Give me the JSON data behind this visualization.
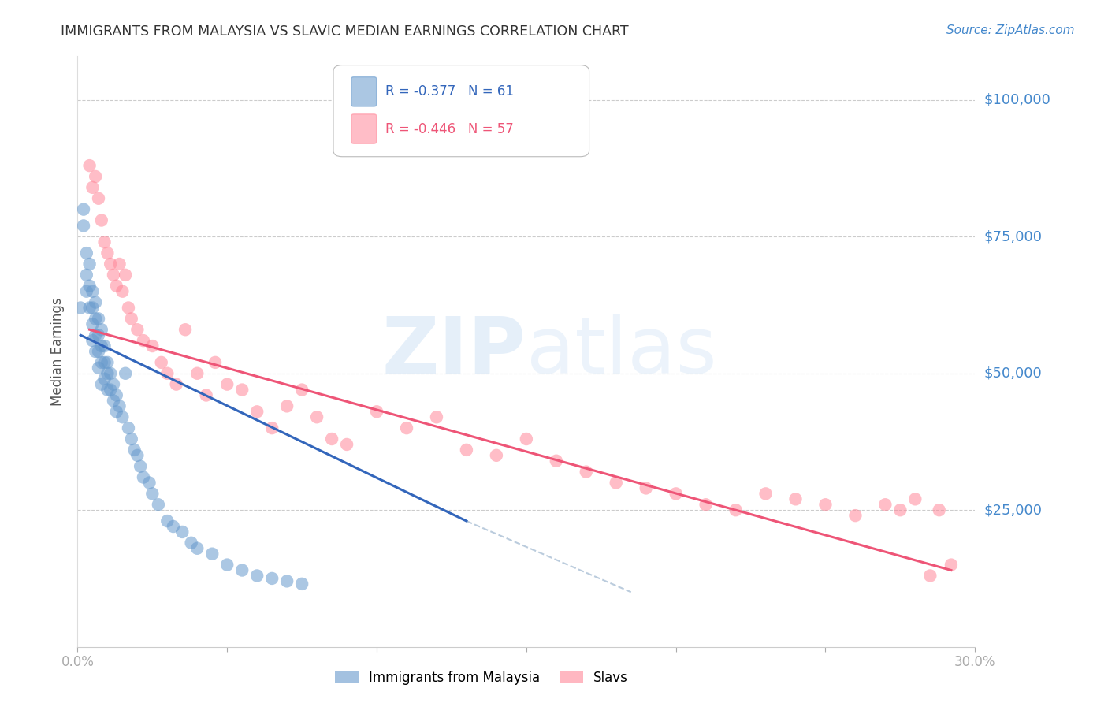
{
  "title": "IMMIGRANTS FROM MALAYSIA VS SLAVIC MEDIAN EARNINGS CORRELATION CHART",
  "source": "Source: ZipAtlas.com",
  "ylabel": "Median Earnings",
  "ytick_labels": [
    "$100,000",
    "$75,000",
    "$50,000",
    "$25,000"
  ],
  "ytick_values": [
    100000,
    75000,
    50000,
    25000
  ],
  "legend_label1": "Immigrants from Malaysia",
  "legend_label2": "Slavs",
  "legend_r1": "R = -0.377",
  "legend_n1": "N = 61",
  "legend_r2": "R = -0.446",
  "legend_n2": "N = 57",
  "blue_color": "#6699CC",
  "pink_color": "#FF8899",
  "blue_line_color": "#3366BB",
  "pink_line_color": "#EE5577",
  "dash_color": "#BBCCDD",
  "axis_label_color": "#4488CC",
  "title_color": "#333333",
  "source_color": "#4488CC",
  "xmin": 0.0,
  "xmax": 0.3,
  "ymin": 0,
  "ymax": 108000,
  "blue_scatter_x": [
    0.001,
    0.002,
    0.002,
    0.003,
    0.003,
    0.003,
    0.004,
    0.004,
    0.004,
    0.005,
    0.005,
    0.005,
    0.005,
    0.006,
    0.006,
    0.006,
    0.006,
    0.007,
    0.007,
    0.007,
    0.007,
    0.008,
    0.008,
    0.008,
    0.008,
    0.009,
    0.009,
    0.009,
    0.01,
    0.01,
    0.01,
    0.011,
    0.011,
    0.012,
    0.012,
    0.013,
    0.013,
    0.014,
    0.015,
    0.016,
    0.017,
    0.018,
    0.019,
    0.02,
    0.021,
    0.022,
    0.024,
    0.025,
    0.027,
    0.03,
    0.032,
    0.035,
    0.038,
    0.04,
    0.045,
    0.05,
    0.055,
    0.06,
    0.065,
    0.07,
    0.075
  ],
  "blue_scatter_y": [
    62000,
    80000,
    77000,
    72000,
    68000,
    65000,
    70000,
    66000,
    62000,
    65000,
    62000,
    59000,
    56000,
    63000,
    60000,
    57000,
    54000,
    60000,
    57000,
    54000,
    51000,
    58000,
    55000,
    52000,
    48000,
    55000,
    52000,
    49000,
    52000,
    50000,
    47000,
    50000,
    47000,
    48000,
    45000,
    46000,
    43000,
    44000,
    42000,
    50000,
    40000,
    38000,
    36000,
    35000,
    33000,
    31000,
    30000,
    28000,
    26000,
    23000,
    22000,
    21000,
    19000,
    18000,
    17000,
    15000,
    14000,
    13000,
    12500,
    12000,
    11500
  ],
  "pink_scatter_x": [
    0.004,
    0.005,
    0.006,
    0.007,
    0.008,
    0.009,
    0.01,
    0.011,
    0.012,
    0.013,
    0.014,
    0.015,
    0.016,
    0.017,
    0.018,
    0.02,
    0.022,
    0.025,
    0.028,
    0.03,
    0.033,
    0.036,
    0.04,
    0.043,
    0.046,
    0.05,
    0.055,
    0.06,
    0.065,
    0.07,
    0.075,
    0.08,
    0.085,
    0.09,
    0.1,
    0.11,
    0.12,
    0.13,
    0.14,
    0.15,
    0.16,
    0.17,
    0.18,
    0.19,
    0.2,
    0.21,
    0.22,
    0.23,
    0.24,
    0.25,
    0.26,
    0.27,
    0.275,
    0.28,
    0.285,
    0.288,
    0.292
  ],
  "pink_scatter_y": [
    88000,
    84000,
    86000,
    82000,
    78000,
    74000,
    72000,
    70000,
    68000,
    66000,
    70000,
    65000,
    68000,
    62000,
    60000,
    58000,
    56000,
    55000,
    52000,
    50000,
    48000,
    58000,
    50000,
    46000,
    52000,
    48000,
    47000,
    43000,
    40000,
    44000,
    47000,
    42000,
    38000,
    37000,
    43000,
    40000,
    42000,
    36000,
    35000,
    38000,
    34000,
    32000,
    30000,
    29000,
    28000,
    26000,
    25000,
    28000,
    27000,
    26000,
    24000,
    26000,
    25000,
    27000,
    13000,
    25000,
    15000
  ],
  "blue_line_x": [
    0.001,
    0.13
  ],
  "blue_line_y": [
    57000,
    23000
  ],
  "pink_line_x": [
    0.004,
    0.292
  ],
  "pink_line_y": [
    58000,
    14000
  ],
  "dash_line_x": [
    0.13,
    0.185
  ],
  "dash_line_y": [
    23000,
    10000
  ]
}
